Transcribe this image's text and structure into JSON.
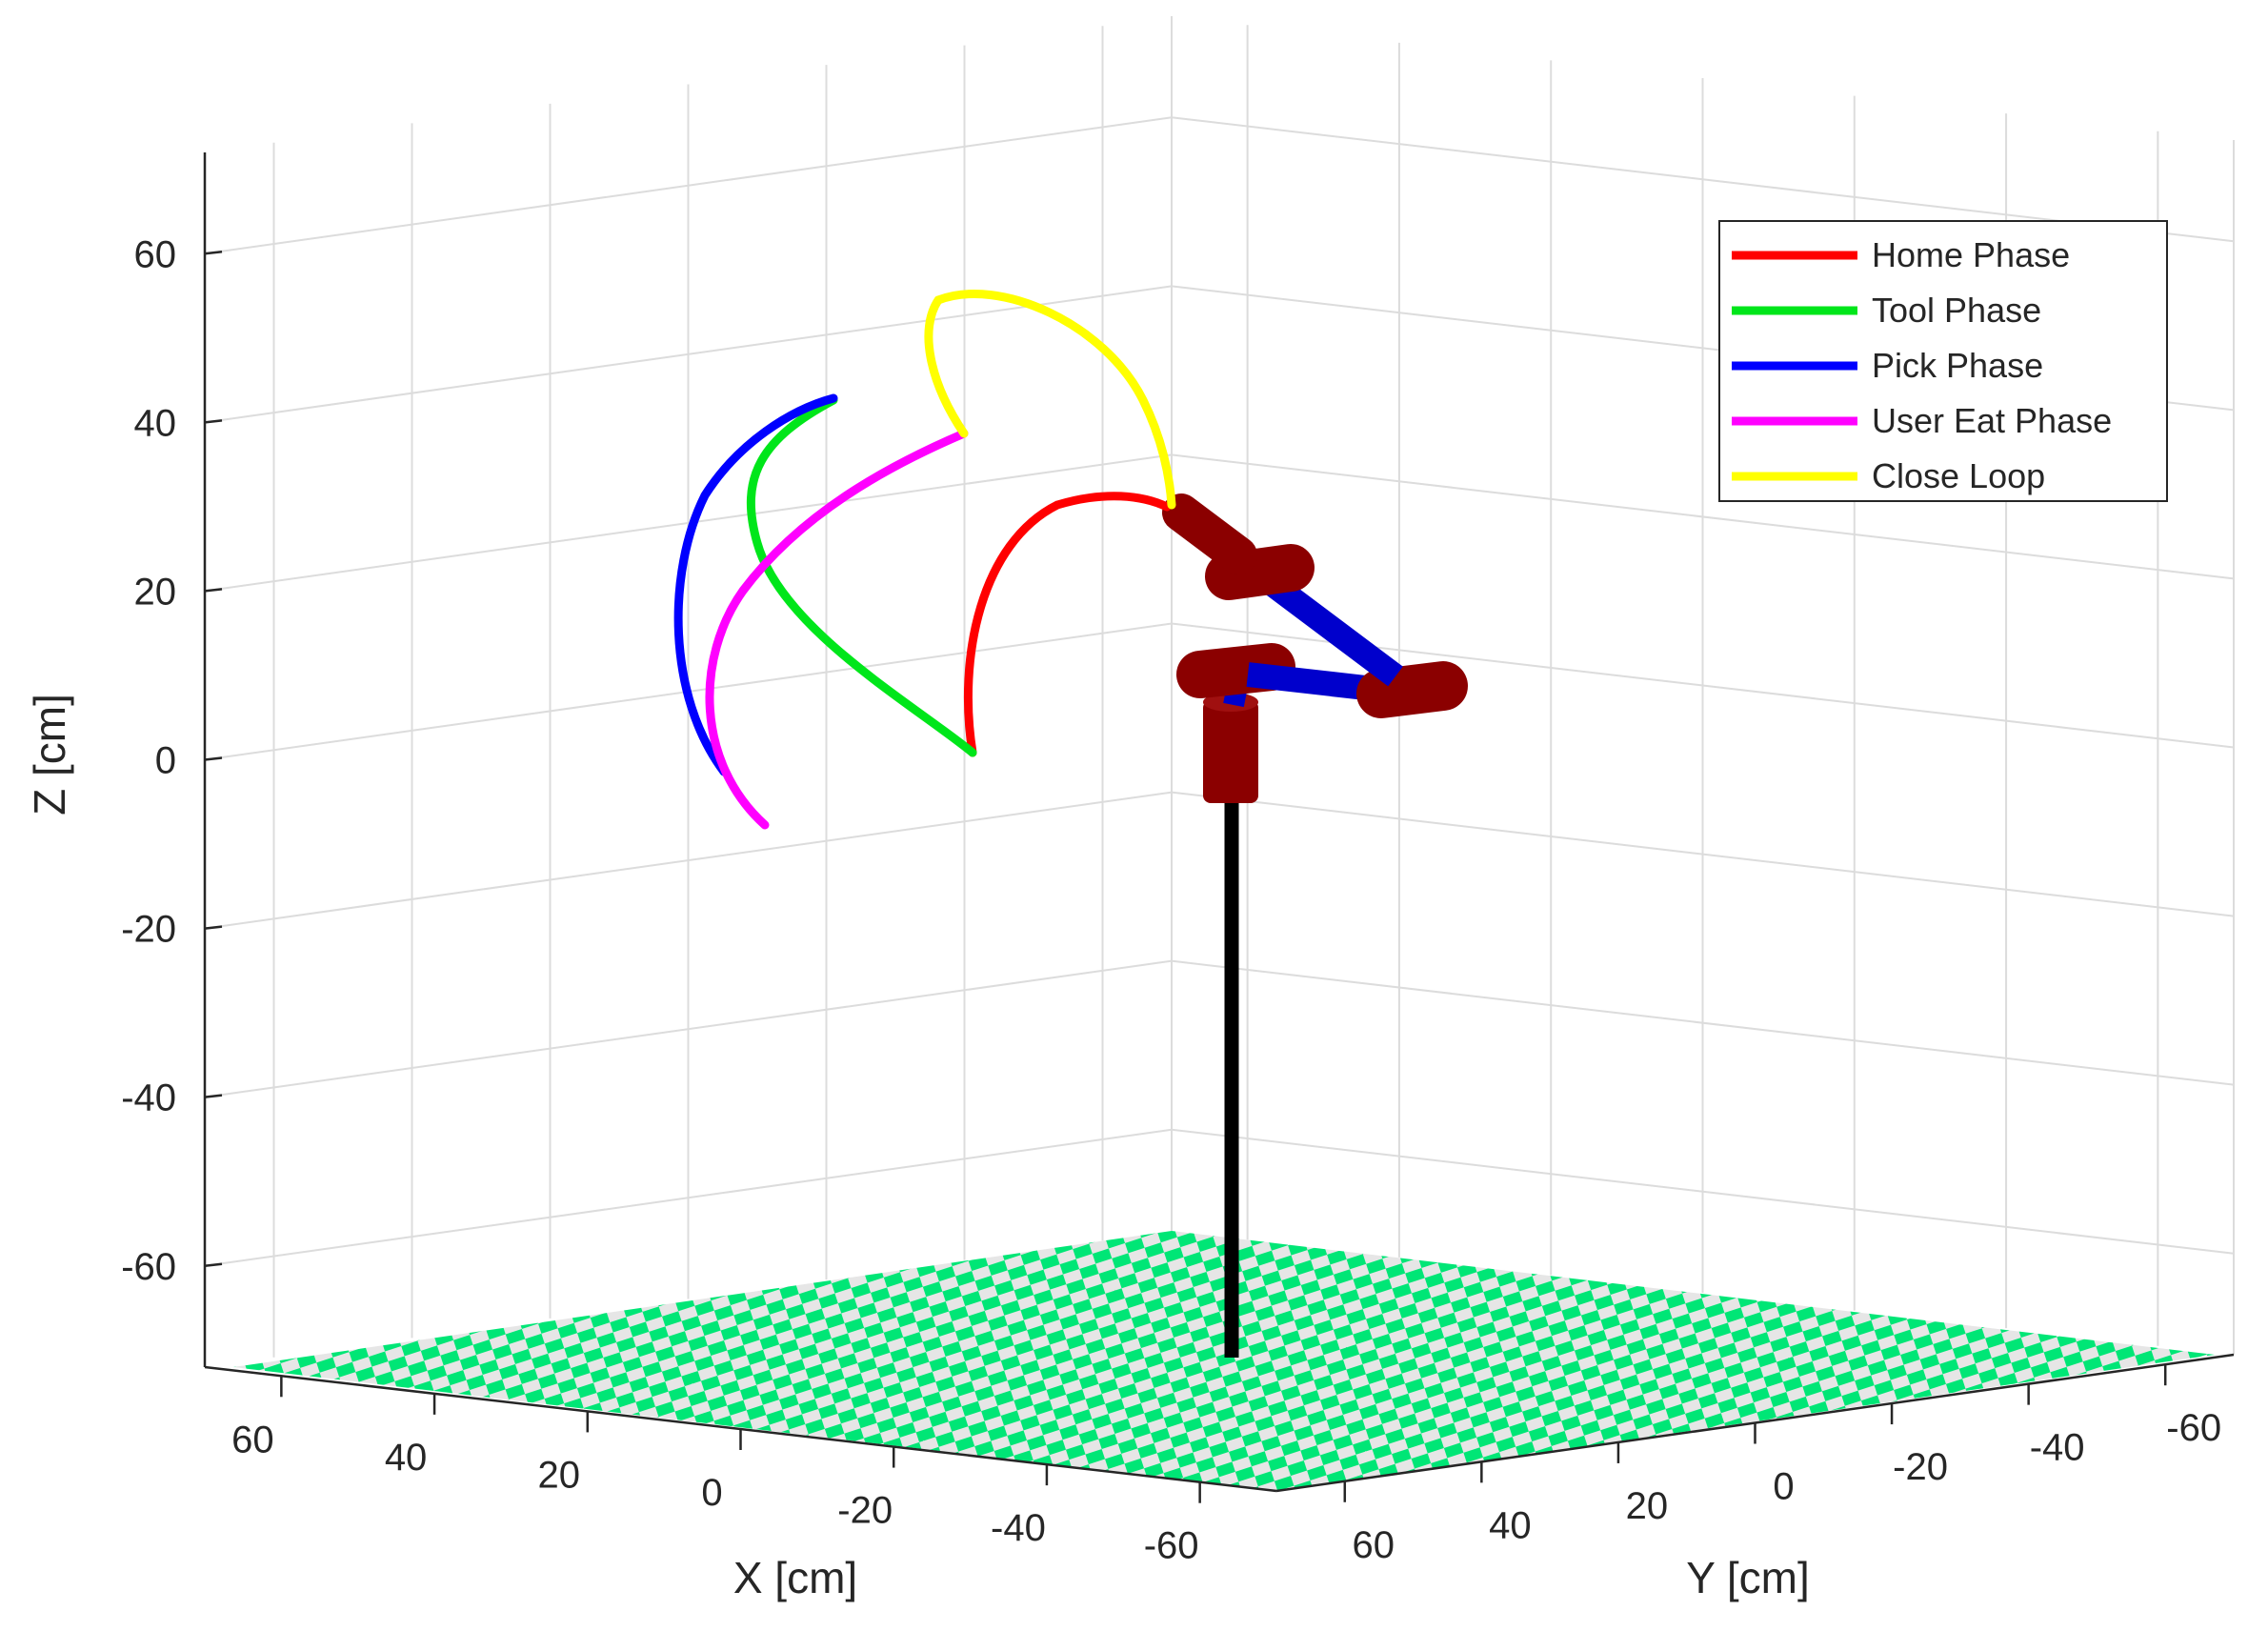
{
  "chart_data": {
    "type": "line",
    "title": "",
    "xlabel": "X [cm]",
    "ylabel": "Y [cm]",
    "zlabel": "Z [cm]",
    "xlim": [
      -70,
      70
    ],
    "ylim": [
      -70,
      70
    ],
    "zlim": [
      -72,
      72
    ],
    "x_ticks": [
      "60",
      "40",
      "20",
      "0",
      "-20",
      "-40",
      "-60"
    ],
    "y_ticks": [
      "60",
      "40",
      "20",
      "0",
      "-20",
      "-40",
      "-60"
    ],
    "z_ticks": [
      "60",
      "40",
      "20",
      "0",
      "-20",
      "-40",
      "-60"
    ],
    "grid": true,
    "legend_position": "top-right",
    "series": [
      {
        "name": "Home Phase",
        "color": "#ff0000"
      },
      {
        "name": "Tool Phase",
        "color": "#00e61a"
      },
      {
        "name": "Pick Phase",
        "color": "#0000ff"
      },
      {
        "name": "User Eat Phase",
        "color": "#ff00ff"
      },
      {
        "name": "Close Loop",
        "color": "#ffff00"
      }
    ],
    "floor_color": "#00e676",
    "robot": {
      "link_color": "#0000cc",
      "joint_color": "#8b0000",
      "pole_color": "#000000"
    }
  }
}
